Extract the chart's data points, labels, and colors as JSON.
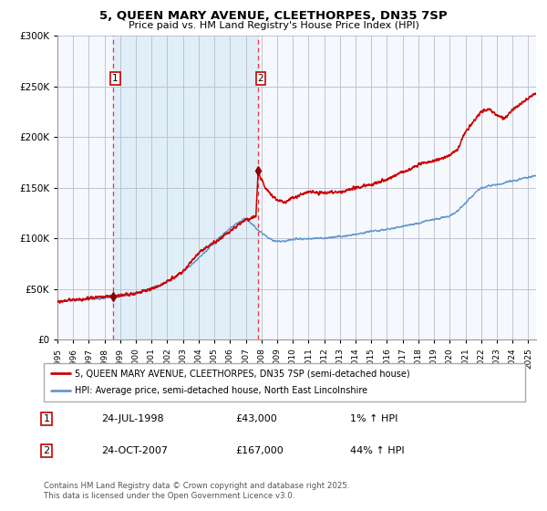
{
  "title_line1": "5, QUEEN MARY AVENUE, CLEETHORPES, DN35 7SP",
  "title_line2": "Price paid vs. HM Land Registry's House Price Index (HPI)",
  "legend_line1": "5, QUEEN MARY AVENUE, CLEETHORPES, DN35 7SP (semi-detached house)",
  "legend_line2": "HPI: Average price, semi-detached house, North East Lincolnshire",
  "footnote": "Contains HM Land Registry data © Crown copyright and database right 2025.\nThis data is licensed under the Open Government Licence v3.0.",
  "sale1_label": "1",
  "sale1_date": "24-JUL-1998",
  "sale1_price": 43000,
  "sale1_price_str": "£43,000",
  "sale1_hpi": "1% ↑ HPI",
  "sale1_year": 1998.542,
  "sale2_label": "2",
  "sale2_date": "24-OCT-2007",
  "sale2_price": 167000,
  "sale2_price_str": "£167,000",
  "sale2_hpi": "44% ↑ HPI",
  "sale2_year": 2007.792,
  "hpi_color": "#6699cc",
  "price_color": "#cc0000",
  "marker_color": "#880000",
  "vline_color": "#ee3333",
  "shade_color": "#e0eef8",
  "background_color": "#f5f8fd",
  "grid_color": "#bbbbcc",
  "ylim": [
    0,
    300000
  ],
  "yticks": [
    0,
    50000,
    100000,
    150000,
    200000,
    250000,
    300000
  ],
  "xlim_start": 1995.0,
  "xlim_end": 2025.5
}
